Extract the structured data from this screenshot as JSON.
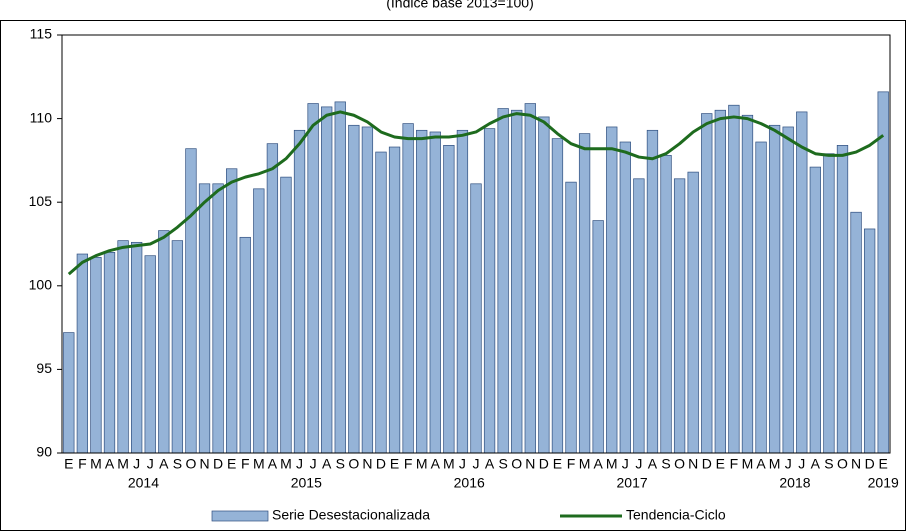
{
  "chart_data": {
    "type": "bar-line",
    "subtitle": "(Índice base 2013=100)",
    "categories": [
      "E",
      "F",
      "M",
      "A",
      "M",
      "J",
      "J",
      "A",
      "S",
      "O",
      "N",
      "D",
      "E",
      "F",
      "M",
      "A",
      "M",
      "J",
      "J",
      "A",
      "S",
      "O",
      "N",
      "D",
      "E",
      "F",
      "M",
      "A",
      "M",
      "J",
      "J",
      "A",
      "S",
      "O",
      "N",
      "D",
      "E",
      "F",
      "M",
      "A",
      "M",
      "J",
      "J",
      "A",
      "S",
      "O",
      "N",
      "D",
      "E",
      "F",
      "M",
      "A",
      "M",
      "J",
      "J",
      "A",
      "S",
      "O",
      "N",
      "D",
      "E"
    ],
    "x_groups": [
      "2014",
      "2015",
      "2016",
      "2017",
      "2018",
      "2019"
    ],
    "series": [
      {
        "name": "Serie Desestacionalizada",
        "type": "bar",
        "color": "#95b3d7",
        "values": [
          97.2,
          101.9,
          101.7,
          102.0,
          102.7,
          102.6,
          101.8,
          103.3,
          102.7,
          108.2,
          106.1,
          106.1,
          107.0,
          102.9,
          105.8,
          108.5,
          106.5,
          109.3,
          110.9,
          110.7,
          111.0,
          109.6,
          109.5,
          108.0,
          108.3,
          109.7,
          109.3,
          109.2,
          108.4,
          109.3,
          106.1,
          109.4,
          110.6,
          110.5,
          110.9,
          110.1,
          108.8,
          106.2,
          109.1,
          103.9,
          109.5,
          108.6,
          106.4,
          109.3,
          107.8,
          106.4,
          106.8,
          110.3,
          110.5,
          110.8,
          110.2,
          108.6,
          109.6,
          109.5,
          110.4,
          107.1,
          107.9,
          108.4,
          104.4,
          103.4,
          111.6
        ]
      },
      {
        "name": "Tendencia-Ciclo",
        "type": "line",
        "color": "#1e6b1e",
        "values": [
          100.7,
          101.4,
          101.8,
          102.1,
          102.3,
          102.4,
          102.5,
          102.9,
          103.5,
          104.2,
          105.0,
          105.7,
          106.2,
          106.5,
          106.7,
          107.0,
          107.6,
          108.5,
          109.6,
          110.2,
          110.4,
          110.2,
          109.8,
          109.2,
          108.9,
          108.8,
          108.8,
          108.9,
          108.9,
          109.0,
          109.2,
          109.7,
          110.1,
          110.3,
          110.2,
          109.8,
          109.1,
          108.5,
          108.2,
          108.2,
          108.2,
          108.0,
          107.7,
          107.6,
          107.9,
          108.5,
          109.2,
          109.7,
          110.0,
          110.1,
          110.0,
          109.7,
          109.3,
          108.8,
          108.3,
          107.9,
          107.8,
          107.8,
          108.0,
          108.4,
          109.0
        ]
      }
    ],
    "ylim": [
      90,
      115
    ],
    "yticks": [
      90,
      95,
      100,
      105,
      110,
      115
    ],
    "grid": false
  }
}
